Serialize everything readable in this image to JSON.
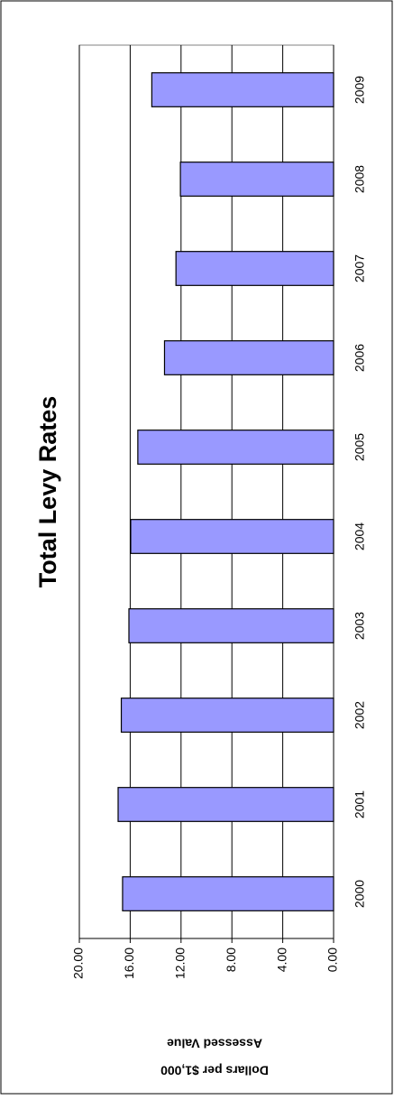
{
  "chart_data": {
    "type": "bar",
    "title": "Total Levy Rates",
    "ylabel": [
      "Dollars per $1,000",
      "Assessed Value"
    ],
    "categories": [
      "2000",
      "2001",
      "2002",
      "2003",
      "2004",
      "2005",
      "2006",
      "2007",
      "2008",
      "2009"
    ],
    "values": [
      16.6,
      16.95,
      16.7,
      16.1,
      15.96,
      15.4,
      13.3,
      12.4,
      12.05,
      14.3
    ],
    "color": "#9999ff",
    "ylim": [
      0,
      20
    ],
    "yticks": [
      {
        "value": 0,
        "label": "0.00"
      },
      {
        "value": 4,
        "label": "4.00"
      },
      {
        "value": 8,
        "label": "8.00"
      },
      {
        "value": 12,
        "label": "12.00"
      },
      {
        "value": 16,
        "label": "16.00"
      },
      {
        "value": 20,
        "label": "20.00"
      }
    ],
    "grid": true
  }
}
